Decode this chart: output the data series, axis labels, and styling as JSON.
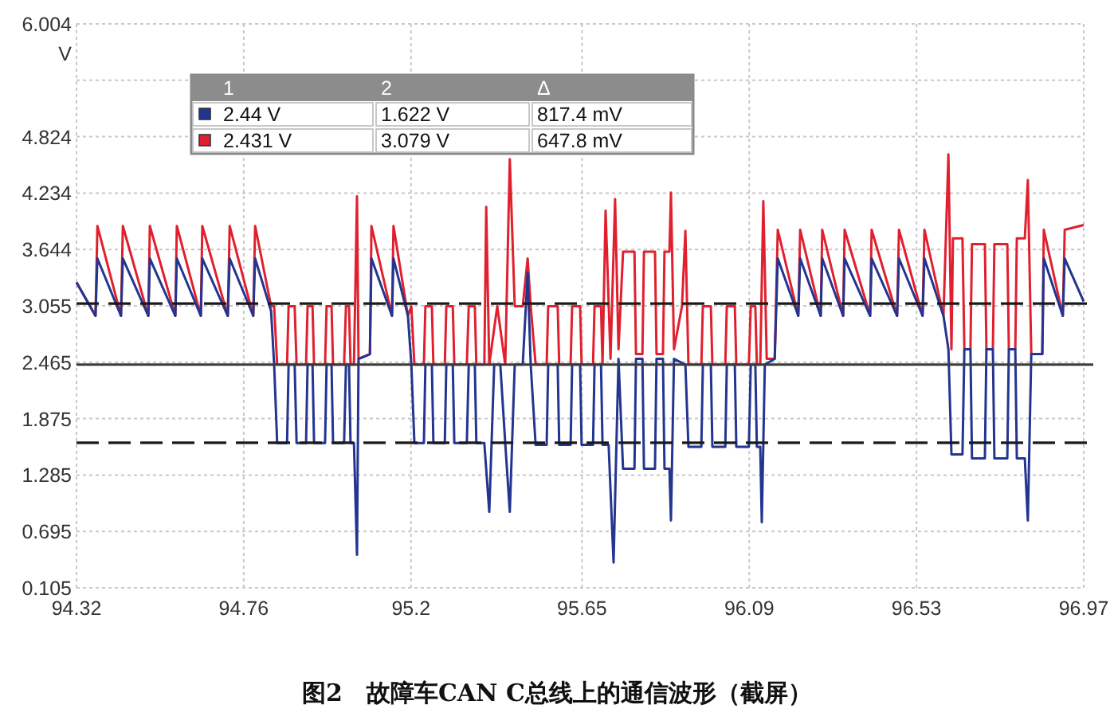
{
  "chart_data": {
    "type": "line",
    "title": "图2　故障车CAN C总线上的通信波形（截屏）",
    "ylabel": "V",
    "xlim": [
      94.32,
      96.97
    ],
    "ylim": [
      0.105,
      6.004
    ],
    "xticks": [
      94.32,
      94.76,
      95.2,
      95.65,
      96.09,
      96.53,
      96.97
    ],
    "yticks": [
      0.105,
      0.695,
      1.285,
      1.875,
      2.465,
      3.055,
      3.644,
      4.234,
      4.824,
      {
        "value": 5.414,
        "label": null
      },
      6.004
    ],
    "grid": true,
    "marker": "none",
    "line_style": "solid",
    "ref_lines": [
      {
        "axis": "y",
        "value": 3.079,
        "line_style": "dashed",
        "color": "#1a1a1a"
      },
      {
        "axis": "y",
        "value": 2.44,
        "line_style": "solid",
        "color": "#3a3a3a"
      },
      {
        "axis": "y",
        "value": 1.622,
        "line_style": "dashed",
        "color": "#1a1a1a"
      }
    ],
    "annotations": [
      "1",
      "2",
      "Δ",
      "2.44 V",
      "1.622 V",
      "817.4 mV",
      "2.431 V",
      "3.079 V",
      "647.8 mV"
    ],
    "series": [
      {
        "color": "#e0202e",
        "x": [
          94.32,
          94.37,
          94.375,
          94.437,
          94.442,
          94.509,
          94.513,
          94.58,
          94.584,
          94.647,
          94.651,
          94.718,
          94.723,
          94.785,
          94.79,
          94.832,
          94.84,
          94.848,
          94.874,
          94.878,
          94.894,
          94.899,
          94.924,
          94.928,
          94.941,
          94.945,
          94.974,
          94.978,
          94.991,
          94.995,
          95.024,
          95.029,
          95.037,
          95.041,
          95.05,
          95.058,
          95.062,
          95.092,
          95.096,
          95.15,
          95.154,
          95.192,
          95.201,
          95.209,
          95.234,
          95.238,
          95.255,
          95.259,
          95.289,
          95.293,
          95.31,
          95.314,
          95.347,
          95.352,
          95.368,
          95.372,
          95.393,
          95.398,
          95.406,
          95.427,
          95.448,
          95.46,
          95.473,
          95.494,
          95.507,
          95.515,
          95.528,
          95.557,
          95.561,
          95.586,
          95.59,
          95.62,
          95.624,
          95.645,
          95.649,
          95.679,
          95.683,
          95.7,
          95.704,
          95.712,
          95.725,
          95.737,
          95.746,
          95.758,
          95.788,
          95.792,
          95.809,
          95.813,
          95.842,
          95.846,
          95.863,
          95.867,
          95.88,
          95.884,
          95.892,
          95.913,
          95.922,
          95.93,
          95.964,
          95.968,
          95.989,
          95.993,
          96.027,
          96.031,
          96.052,
          96.056,
          96.089,
          96.094,
          96.106,
          96.11,
          96.119,
          96.127,
          96.136,
          96.157,
          96.165,
          96.219,
          96.224,
          96.278,
          96.282,
          96.337,
          96.341,
          96.408,
          96.412,
          96.479,
          96.484,
          96.546,
          96.551,
          96.601,
          96.614,
          96.622,
          96.626,
          96.651,
          96.656,
          96.672,
          96.676,
          96.71,
          96.714,
          96.731,
          96.735,
          96.769,
          96.773,
          96.79,
          96.794,
          96.815,
          96.823,
          96.832,
          96.861,
          96.865,
          96.915,
          96.92,
          96.97
        ],
        "values": [
          3.3,
          2.95,
          3.89,
          2.95,
          3.89,
          2.95,
          3.89,
          2.95,
          3.89,
          2.95,
          3.89,
          2.95,
          3.89,
          2.95,
          3.89,
          3.05,
          3.05,
          2.44,
          2.44,
          3.05,
          3.05,
          2.44,
          2.44,
          3.05,
          3.05,
          2.44,
          2.44,
          3.05,
          3.05,
          2.44,
          2.44,
          3.05,
          3.05,
          2.44,
          2.44,
          4.2,
          2.5,
          2.55,
          3.89,
          2.95,
          3.89,
          2.95,
          3.05,
          2.44,
          2.44,
          3.05,
          3.05,
          2.44,
          2.44,
          3.05,
          3.05,
          2.44,
          2.44,
          3.05,
          3.05,
          2.44,
          2.44,
          4.09,
          2.44,
          3.05,
          2.44,
          4.59,
          3.05,
          3.05,
          3.55,
          3.05,
          2.44,
          2.44,
          3.05,
          3.05,
          2.44,
          2.44,
          3.05,
          3.05,
          2.44,
          2.44,
          3.05,
          3.05,
          2.44,
          4.05,
          2.5,
          4.17,
          2.6,
          3.62,
          3.62,
          2.55,
          2.55,
          3.62,
          3.62,
          2.55,
          2.55,
          3.62,
          3.62,
          4.24,
          2.6,
          3.05,
          3.84,
          2.44,
          2.44,
          3.05,
          3.05,
          2.44,
          2.44,
          3.05,
          3.05,
          2.44,
          2.44,
          3.05,
          3.05,
          2.44,
          2.44,
          4.15,
          2.5,
          2.5,
          3.85,
          2.95,
          3.85,
          2.95,
          3.85,
          2.95,
          3.85,
          2.95,
          3.85,
          2.95,
          3.85,
          2.95,
          3.85,
          2.95,
          4.64,
          2.6,
          3.76,
          3.76,
          2.6,
          2.6,
          3.7,
          3.7,
          2.6,
          2.6,
          3.7,
          3.7,
          2.6,
          2.6,
          3.76,
          3.76,
          4.37,
          2.55,
          2.55,
          3.85,
          2.95,
          3.85,
          3.9
        ]
      },
      {
        "color": "#23358f",
        "x": [
          94.32,
          94.37,
          94.375,
          94.437,
          94.442,
          94.509,
          94.513,
          94.58,
          94.584,
          94.647,
          94.651,
          94.718,
          94.723,
          94.785,
          94.79,
          94.832,
          94.84,
          94.848,
          94.874,
          94.878,
          94.894,
          94.899,
          94.924,
          94.928,
          94.941,
          94.945,
          94.974,
          94.978,
          94.991,
          94.995,
          95.024,
          95.029,
          95.037,
          95.041,
          95.05,
          95.058,
          95.062,
          95.092,
          95.096,
          95.15,
          95.154,
          95.192,
          95.201,
          95.209,
          95.234,
          95.238,
          95.255,
          95.259,
          95.289,
          95.293,
          95.31,
          95.314,
          95.347,
          95.352,
          95.368,
          95.372,
          95.393,
          95.406,
          95.419,
          95.435,
          95.448,
          95.46,
          95.473,
          95.494,
          95.507,
          95.515,
          95.528,
          95.557,
          95.561,
          95.586,
          95.59,
          95.62,
          95.624,
          95.645,
          95.649,
          95.679,
          95.683,
          95.7,
          95.704,
          95.72,
          95.733,
          95.746,
          95.758,
          95.788,
          95.792,
          95.809,
          95.813,
          95.842,
          95.846,
          95.863,
          95.867,
          95.88,
          95.884,
          95.892,
          95.922,
          95.93,
          95.964,
          95.968,
          95.989,
          95.993,
          96.027,
          96.031,
          96.052,
          96.056,
          96.089,
          96.094,
          96.106,
          96.11,
          96.119,
          96.123,
          96.131,
          96.157,
          96.165,
          96.219,
          96.224,
          96.278,
          96.282,
          96.337,
          96.341,
          96.408,
          96.412,
          96.479,
          96.484,
          96.546,
          96.551,
          96.601,
          96.614,
          96.622,
          96.651,
          96.656,
          96.672,
          96.676,
          96.71,
          96.714,
          96.731,
          96.735,
          96.769,
          96.773,
          96.79,
          96.794,
          96.815,
          96.823,
          96.832,
          96.861,
          96.865,
          96.915,
          96.92,
          96.97
        ],
        "values": [
          3.3,
          2.95,
          3.55,
          2.95,
          3.55,
          2.95,
          3.55,
          2.95,
          3.55,
          2.95,
          3.55,
          2.95,
          3.55,
          2.95,
          3.55,
          3.0,
          2.44,
          1.62,
          1.62,
          2.44,
          2.44,
          1.62,
          1.62,
          2.44,
          2.44,
          1.62,
          1.62,
          2.44,
          2.44,
          1.62,
          1.62,
          2.44,
          2.44,
          1.62,
          1.62,
          0.45,
          2.5,
          2.55,
          3.55,
          2.95,
          3.55,
          2.95,
          2.44,
          1.62,
          1.62,
          2.44,
          2.44,
          1.62,
          1.62,
          2.44,
          2.44,
          1.62,
          1.62,
          2.44,
          2.44,
          1.62,
          1.62,
          0.9,
          2.44,
          2.44,
          1.62,
          0.9,
          2.44,
          2.44,
          3.4,
          2.44,
          1.6,
          1.6,
          2.44,
          2.44,
          1.6,
          1.6,
          2.44,
          2.44,
          1.6,
          1.6,
          2.44,
          2.44,
          1.6,
          1.6,
          0.37,
          2.5,
          1.35,
          1.35,
          2.5,
          2.5,
          1.35,
          1.35,
          2.5,
          2.5,
          1.35,
          1.35,
          0.81,
          2.5,
          2.44,
          1.58,
          1.58,
          2.44,
          2.44,
          1.58,
          1.58,
          2.44,
          2.44,
          1.58,
          1.58,
          2.44,
          2.44,
          1.58,
          1.58,
          0.79,
          2.44,
          2.5,
          3.55,
          2.95,
          3.55,
          2.95,
          3.55,
          2.95,
          3.55,
          2.95,
          3.55,
          2.95,
          3.55,
          2.95,
          3.55,
          2.95,
          2.6,
          1.5,
          1.5,
          2.6,
          2.6,
          1.46,
          1.46,
          2.6,
          2.6,
          1.46,
          1.46,
          2.6,
          2.6,
          1.46,
          1.46,
          0.81,
          2.55,
          2.55,
          3.55,
          2.95,
          3.55,
          3.1
        ]
      }
    ]
  }
}
